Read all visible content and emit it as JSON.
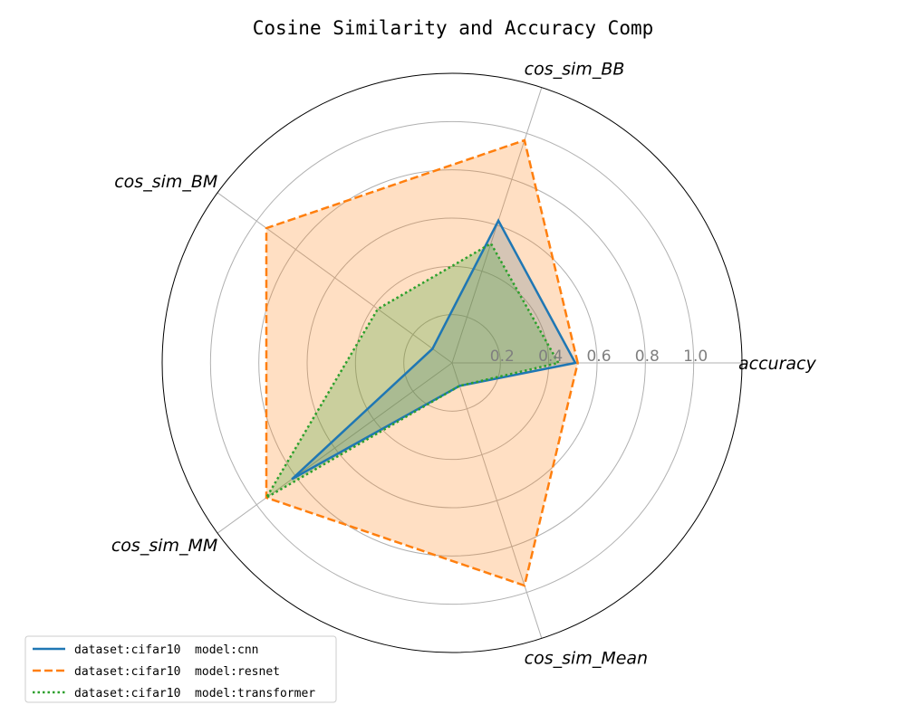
{
  "chart_data": {
    "type": "radar",
    "title": "Cosine Similarity and Accuracy Comp",
    "axes": [
      "accuracy",
      "cos_sim_BB",
      "cos_sim_BM",
      "cos_sim_MM",
      "cos_sim_Mean"
    ],
    "rticks": [
      0.2,
      0.4,
      0.6,
      0.8,
      1.0
    ],
    "rtick_labels": [
      "0.2",
      "0.4",
      "0.6",
      "0.8",
      "1.0"
    ],
    "rlim": [
      0,
      1.2
    ],
    "grid": true,
    "legend_position": "lower-left",
    "series": [
      {
        "name": "dataset:cifar10  model:cnn",
        "values": [
          0.51,
          0.62,
          0.1,
          0.82,
          0.1
        ],
        "color": "#1f77b4",
        "linestyle": "solid"
      },
      {
        "name": "dataset:cifar10  model:resnet",
        "values": [
          0.52,
          0.97,
          0.95,
          0.95,
          0.97
        ],
        "color": "#ff7f0e",
        "linestyle": "dashed"
      },
      {
        "name": "dataset:cifar10  model:transformer",
        "values": [
          0.44,
          0.52,
          0.38,
          0.95,
          0.1
        ],
        "color": "#2ca02c",
        "linestyle": "dotted"
      }
    ]
  }
}
